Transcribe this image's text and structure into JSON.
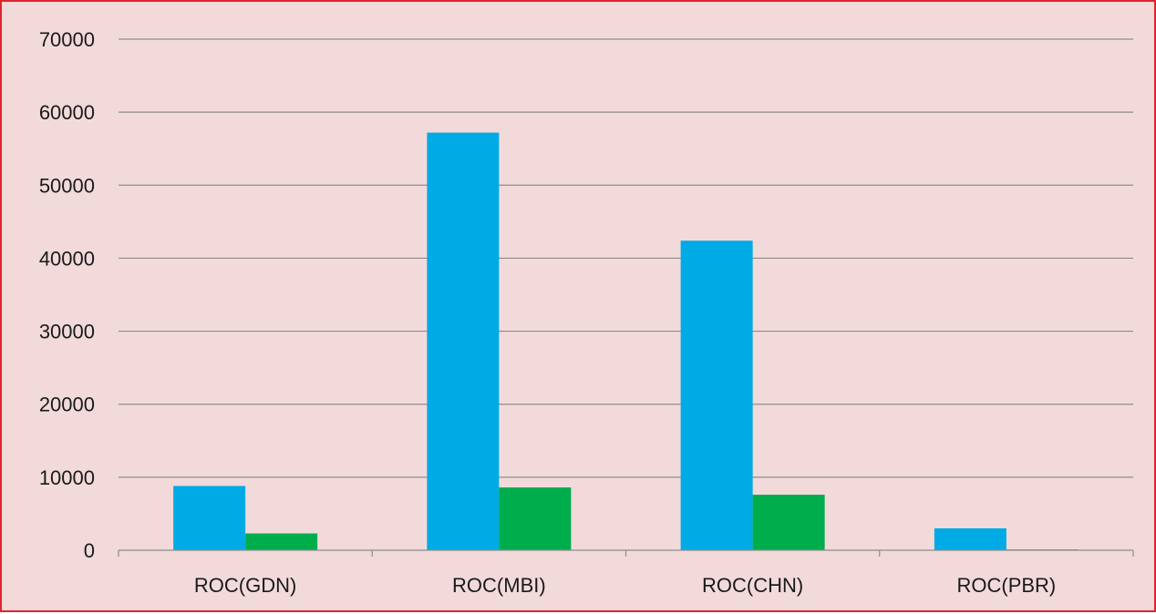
{
  "chart_data": {
    "type": "bar",
    "title": "",
    "xlabel": "",
    "ylabel": "",
    "categories": [
      "ROC(GDN)",
      "ROC(MBI)",
      "ROC(CHN)",
      "ROC(PBR)"
    ],
    "series": [
      {
        "values": [
          8800,
          57200,
          42400,
          3000
        ],
        "color": "#00aae5"
      },
      {
        "values": [
          2300,
          8600,
          7600,
          100
        ],
        "color": "#00ad4c"
      }
    ],
    "ylim": [
      0,
      70000
    ],
    "yticks": [
      0,
      10000,
      20000,
      30000,
      40000,
      50000,
      60000,
      70000
    ],
    "grid": true,
    "legend": "none",
    "colors": {
      "background": "#f2dadb",
      "border": "#e0242a",
      "gridline": "#8c8c8c"
    }
  }
}
